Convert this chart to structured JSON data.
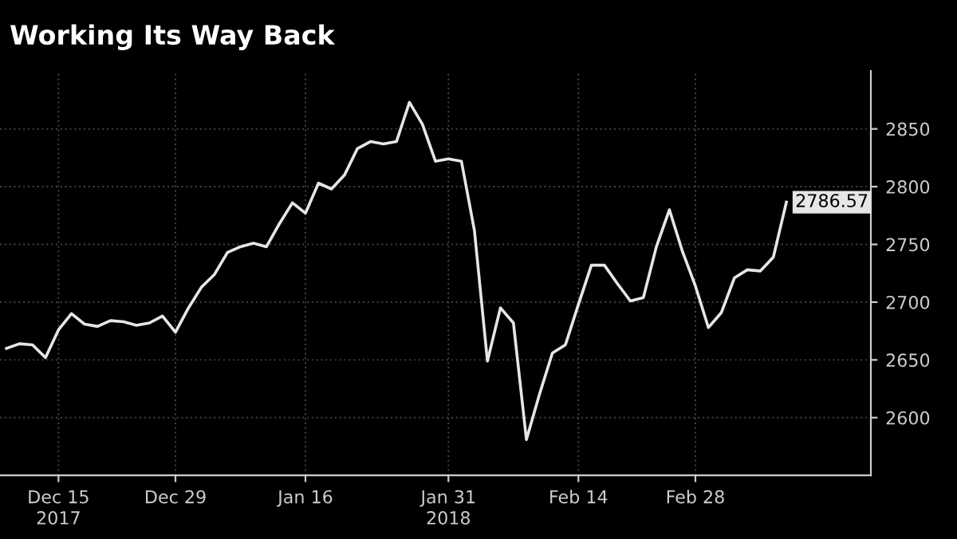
{
  "chart_data": {
    "type": "line",
    "title": "Working Its Way Back",
    "categories": [
      null,
      null,
      null,
      null,
      "Dec 15",
      null,
      null,
      null,
      null,
      null,
      null,
      null,
      null,
      "Dec 29",
      null,
      null,
      null,
      null,
      null,
      null,
      null,
      null,
      null,
      "Jan 16",
      null,
      null,
      null,
      null,
      null,
      null,
      null,
      null,
      null,
      null,
      "Jan 31",
      null,
      null,
      null,
      null,
      null,
      null,
      null,
      null,
      null,
      "Feb 14",
      null,
      null,
      null,
      null,
      null,
      null,
      null,
      null,
      "Feb 28",
      null,
      null,
      null,
      null,
      null,
      null,
      null
    ],
    "series": [
      {
        "color": "#e6e6e6",
        "values": [
          2660,
          2664,
          2663,
          2652,
          2676,
          2690,
          2681,
          2679,
          2684,
          2683,
          2680,
          2682,
          2688,
          2674,
          2695,
          2713,
          2724,
          2743,
          2748,
          2751,
          2748,
          2768,
          2786,
          2777,
          2803,
          2798,
          2810,
          2833,
          2839,
          2837,
          2839,
          2873,
          2854,
          2822,
          2824,
          2822,
          2762,
          2649,
          2695,
          2682,
          2581,
          2620,
          2656,
          2663,
          2698,
          2732,
          2732,
          2716,
          2701,
          2704,
          2748,
          2780,
          2744,
          2714,
          2678,
          2691,
          2721,
          2728,
          2727,
          2739,
          2786.57
        ],
        "value_labels": [
          null,
          null,
          null,
          null,
          null,
          null,
          null,
          null,
          null,
          null,
          null,
          null,
          null,
          null,
          null,
          null,
          null,
          null,
          null,
          null,
          null,
          null,
          null,
          null,
          null,
          null,
          null,
          null,
          null,
          null,
          null,
          null,
          null,
          null,
          null,
          null,
          null,
          null,
          null,
          null,
          null,
          null,
          null,
          null,
          null,
          null,
          null,
          null,
          null,
          null,
          null,
          null,
          null,
          null,
          null,
          null,
          null,
          null,
          null,
          null,
          "2786.57"
        ]
      }
    ],
    "ylim": [
      2550,
      2900
    ],
    "yticks": [
      2600,
      2650,
      2700,
      2750,
      2800,
      2850
    ],
    "grid": true,
    "legend": false,
    "annotations": [
      "2017",
      "2018"
    ]
  }
}
